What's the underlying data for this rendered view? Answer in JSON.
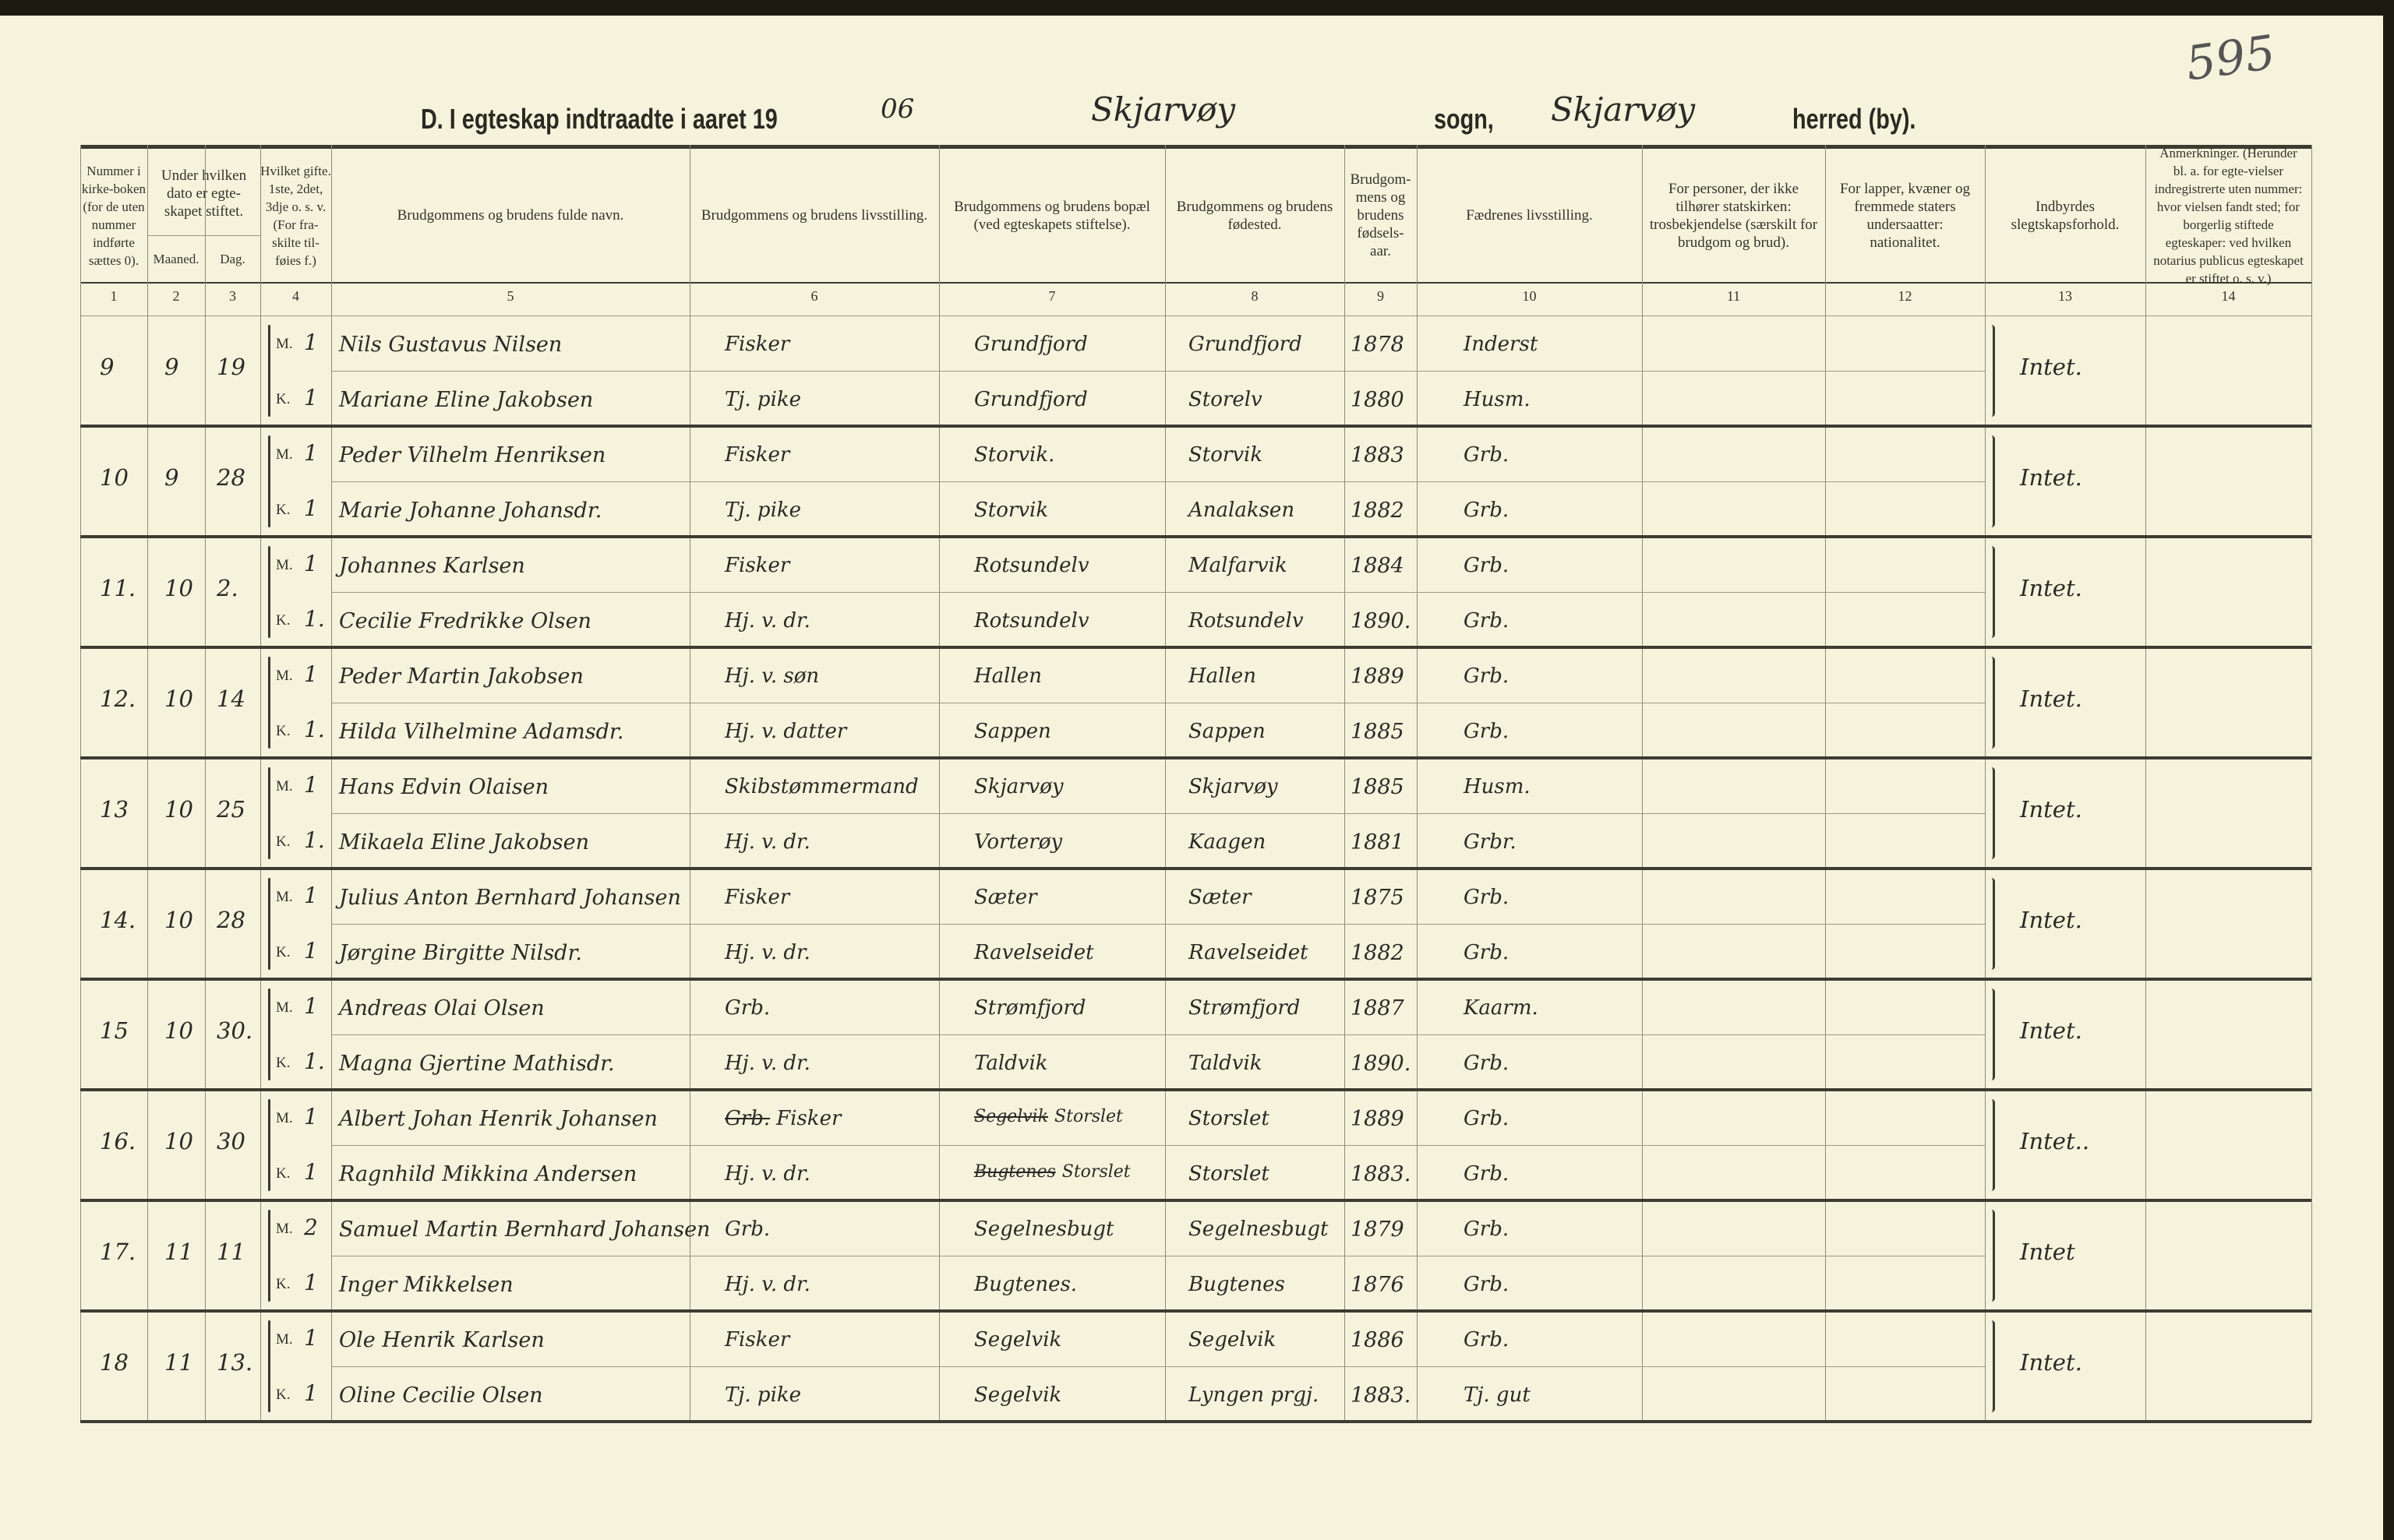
{
  "header": {
    "title_prefix": "D.  I egteskap indtraadte i aaret 19",
    "year_handwritten": "06",
    "parish_handwritten": "Skjarvøy",
    "sogn_label": "sogn,",
    "district_handwritten": "Skjarvøy",
    "herred_label": "herred (by).",
    "page_number": "595"
  },
  "columns": [
    {
      "num": "1",
      "label": "Nummer i kirke-boken (for de uten nummer indførte sættes 0)."
    },
    {
      "num": "2",
      "label": "Maaned."
    },
    {
      "num": "3",
      "label": "Dag."
    },
    {
      "num": "4",
      "label": "Hvilket gifte. 1ste, 2det, 3dje o. s. v. (For fra-skilte til-føies f.)"
    },
    {
      "num": "5",
      "label": "Brudgommens og brudens fulde navn."
    },
    {
      "num": "6",
      "label": "Brudgommens og brudens livsstilling."
    },
    {
      "num": "7",
      "label": "Brudgommens og brudens bopæl (ved egteskapets stiftelse)."
    },
    {
      "num": "8",
      "label": "Brudgommens og brudens fødested."
    },
    {
      "num": "9",
      "label": "Brudgom-mens og brudens fødsels-aar."
    },
    {
      "num": "10",
      "label": "Fædrenes livsstilling."
    },
    {
      "num": "11",
      "label": "For personer, der ikke tilhører statskirken: trosbekjendelse (særskilt for brudgom og brud)."
    },
    {
      "num": "12",
      "label": "For lapper, kvæner og fremmede staters undersaatter: nationalitet."
    },
    {
      "num": "13",
      "label": "Indbyrdes slegtskapsforhold."
    },
    {
      "num": "14",
      "label": "Anmerkninger. (Herunder bl. a. for egte-vielser indregistrerte uten nummer: hvor vielsen fandt sted; for borgerlig stiftede egteskaper: ved hvilken notarius publicus egteskapet er stiftet o. s. v.)"
    }
  ],
  "group_header": "Under hvilken dato er egte-skapet stiftet.",
  "entries": [
    {
      "nr": "9",
      "month": "9",
      "day": "19",
      "relation": "Intet.",
      "persons": [
        {
          "sex": "M.",
          "marriage": "1",
          "name": "Nils Gustavus Nilsen",
          "occupation": "Fisker",
          "residence": "Grundfjord",
          "birthplace": "Grundfjord",
          "birth_year": "1878",
          "father_occupation": "Inderst"
        },
        {
          "sex": "K.",
          "marriage": "1",
          "name": "Mariane Eline Jakobsen",
          "occupation": "Tj. pike",
          "residence": "Grundfjord",
          "birthplace": "Storelv",
          "birth_year": "1880",
          "father_occupation": "Husm."
        }
      ]
    },
    {
      "nr": "10",
      "month": "9",
      "day": "28",
      "relation": "Intet.",
      "persons": [
        {
          "sex": "M.",
          "marriage": "1",
          "name": "Peder Vilhelm Henriksen",
          "occupation": "Fisker",
          "residence": "Storvik.",
          "birthplace": "Storvik",
          "birth_year": "1883",
          "father_occupation": "Grb."
        },
        {
          "sex": "K.",
          "marriage": "1",
          "name": "Marie Johanne Johansdr.",
          "occupation": "Tj. pike",
          "residence": "Storvik",
          "birthplace": "Analaksen",
          "birth_year": "1882",
          "father_occupation": "Grb."
        }
      ]
    },
    {
      "nr": "11.",
      "month": "10",
      "day": "2.",
      "relation": "Intet.",
      "persons": [
        {
          "sex": "M.",
          "marriage": "1",
          "name": "Johannes Karlsen",
          "occupation": "Fisker",
          "residence": "Rotsundelv",
          "birthplace": "Malfarvik",
          "birth_year": "1884",
          "father_occupation": "Grb."
        },
        {
          "sex": "K.",
          "marriage": "1.",
          "name": "Cecilie Fredrikke Olsen",
          "occupation": "Hj. v. dr.",
          "residence": "Rotsundelv",
          "birthplace": "Rotsundelv",
          "birth_year": "1890.",
          "father_occupation": "Grb."
        }
      ]
    },
    {
      "nr": "12.",
      "month": "10",
      "day": "14",
      "relation": "Intet.",
      "persons": [
        {
          "sex": "M.",
          "marriage": "1",
          "name": "Peder Martin Jakobsen",
          "occupation": "Hj. v. søn",
          "residence": "Hallen",
          "birthplace": "Hallen",
          "birth_year": "1889",
          "father_occupation": "Grb."
        },
        {
          "sex": "K.",
          "marriage": "1.",
          "name": "Hilda Vilhelmine Adamsdr.",
          "occupation": "Hj. v. datter",
          "residence": "Sappen",
          "birthplace": "Sappen",
          "birth_year": "1885",
          "father_occupation": "Grb."
        }
      ]
    },
    {
      "nr": "13",
      "month": "10",
      "day": "25",
      "relation": "Intet.",
      "persons": [
        {
          "sex": "M.",
          "marriage": "1",
          "name": "Hans Edvin Olaisen",
          "occupation": "Skibstømmermand",
          "residence": "Skjarvøy",
          "birthplace": "Skjarvøy",
          "birth_year": "1885",
          "father_occupation": "Husm."
        },
        {
          "sex": "K.",
          "marriage": "1.",
          "name": "Mikaela Eline Jakobsen",
          "occupation": "Hj. v. dr.",
          "residence": "Vorterøy",
          "birthplace": "Kaagen",
          "birth_year": "1881",
          "father_occupation": "Grbr."
        }
      ]
    },
    {
      "nr": "14.",
      "month": "10",
      "day": "28",
      "relation": "Intet.",
      "persons": [
        {
          "sex": "M.",
          "marriage": "1",
          "name": "Julius Anton Bernhard Johansen",
          "occupation": "Fisker",
          "residence": "Sæter",
          "birthplace": "Sæter",
          "birth_year": "1875",
          "father_occupation": "Grb."
        },
        {
          "sex": "K.",
          "marriage": "1",
          "name": "Jørgine Birgitte Nilsdr.",
          "occupation": "Hj. v. dr.",
          "residence": "Ravelseidet",
          "birthplace": "Ravelseidet",
          "birth_year": "1882",
          "father_occupation": "Grb."
        }
      ]
    },
    {
      "nr": "15",
      "month": "10",
      "day": "30.",
      "relation": "Intet.",
      "persons": [
        {
          "sex": "M.",
          "marriage": "1",
          "name": "Andreas Olai Olsen",
          "occupation": "Grb.",
          "residence": "Strømfjord",
          "birthplace": "Strømfjord",
          "birth_year": "1887",
          "father_occupation": "Kaarm."
        },
        {
          "sex": "K.",
          "marriage": "1.",
          "name": "Magna Gjertine Mathisdr.",
          "occupation": "Hj. v. dr.",
          "residence": "Taldvik",
          "birthplace": "Taldvik",
          "birth_year": "1890.",
          "father_occupation": "Grb."
        }
      ]
    },
    {
      "nr": "16.",
      "month": "10",
      "day": "30",
      "relation": "Intet..",
      "persons": [
        {
          "sex": "M.",
          "marriage": "1",
          "name": "Albert Johan Henrik Johansen",
          "occupation_struck": "Grb.",
          "occupation": "Fisker",
          "residence_struck": "Segelvik",
          "residence": "Storslet",
          "birthplace": "Storslet",
          "birth_year": "1889",
          "father_occupation": "Grb."
        },
        {
          "sex": "K.",
          "marriage": "1",
          "name": "Ragnhild Mikkina Andersen",
          "occupation": "Hj. v. dr.",
          "residence_struck": "Bugtenes",
          "residence": "Storslet",
          "birthplace": "Storslet",
          "birth_year": "1883.",
          "father_occupation": "Grb."
        }
      ]
    },
    {
      "nr": "17.",
      "month": "11",
      "day": "11",
      "relation": "Intet",
      "persons": [
        {
          "sex": "M.",
          "marriage": "2",
          "name": "Samuel Martin Bernhard Johansen",
          "occupation": "Grb.",
          "residence": "Segelnesbugt",
          "birthplace": "Segelnesbugt",
          "birth_year": "1879",
          "father_occupation": "Grb."
        },
        {
          "sex": "K.",
          "marriage": "1",
          "name": "Inger Mikkelsen",
          "occupation": "Hj. v. dr.",
          "residence": "Bugtenes.",
          "birthplace": "Bugtenes",
          "birth_year": "1876",
          "father_occupation": "Grb."
        }
      ]
    },
    {
      "nr": "18",
      "month": "11",
      "day": "13.",
      "relation": "Intet.",
      "persons": [
        {
          "sex": "M.",
          "marriage": "1",
          "name": "Ole Henrik Karlsen",
          "occupation": "Fisker",
          "residence": "Segelvik",
          "birthplace": "Segelvik",
          "birth_year": "1886",
          "father_occupation": "Grb."
        },
        {
          "sex": "K.",
          "marriage": "1",
          "name": "Oline Cecilie Olsen",
          "occupation": "Tj. pike",
          "residence": "Segelvik",
          "birthplace": "Lyngen prgj.",
          "birth_year": "1883.",
          "father_occupation": "Tj. gut"
        }
      ]
    }
  ]
}
